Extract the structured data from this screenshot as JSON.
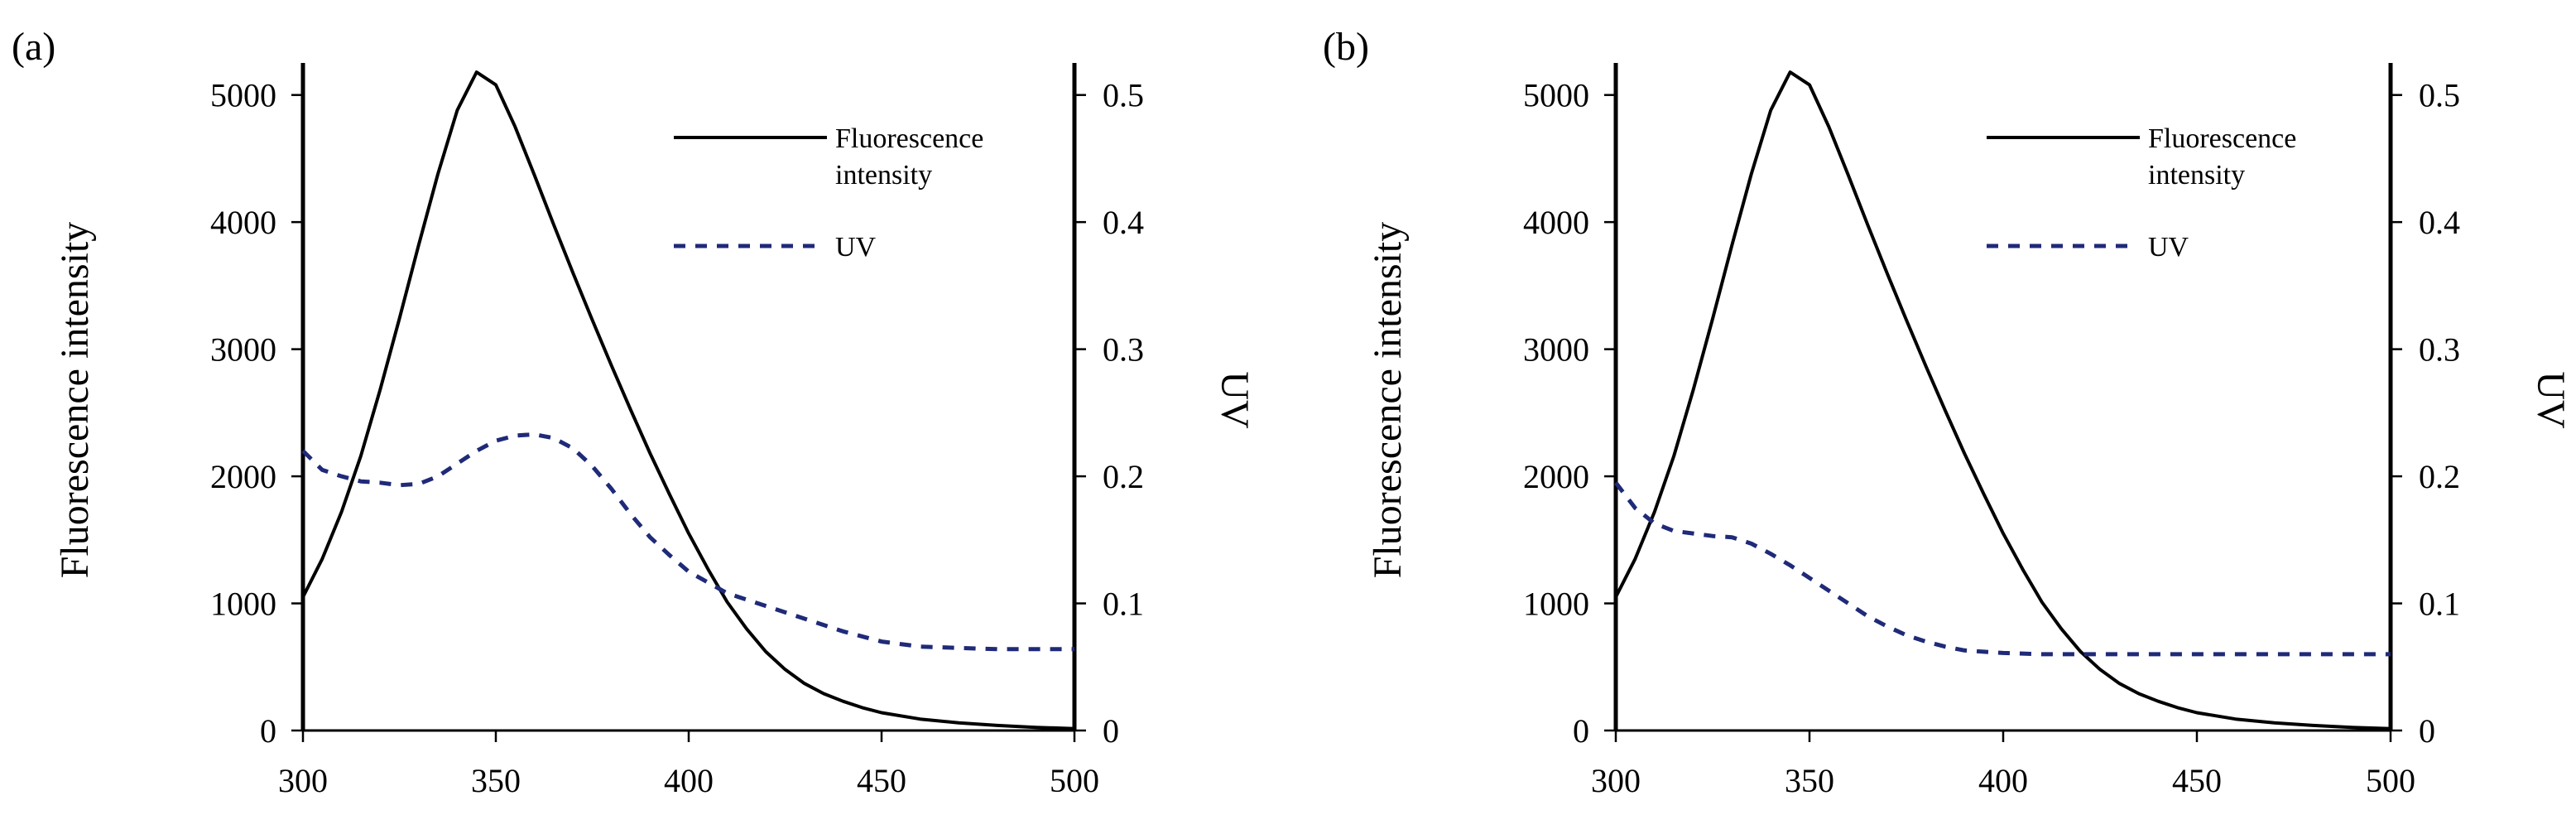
{
  "chart_data": [
    {
      "type": "line",
      "panel_label": "(a)",
      "x_domain": [
        300,
        500
      ],
      "xticks": [
        300,
        350,
        400,
        450,
        500
      ],
      "xtick_labels": [
        "300",
        "350",
        "400",
        "450",
        "500"
      ],
      "y_left": {
        "label": "Fluorescence intensity",
        "lim": [
          0,
          5200
        ],
        "ticks": [
          0,
          1000,
          2000,
          3000,
          4000,
          5000
        ],
        "tick_labels": [
          "0",
          "1000",
          "2000",
          "3000",
          "4000",
          "5000"
        ]
      },
      "y_right": {
        "label": "UV",
        "lim": [
          0,
          0.52
        ],
        "ticks": [
          0,
          0.1,
          0.2,
          0.3,
          0.4,
          0.5
        ],
        "tick_labels": [
          "0",
          "0.1",
          "0.2",
          "0.3",
          "0.4",
          "0.5"
        ]
      },
      "series": [
        {
          "name": "Fluorescence intensity",
          "axis": "left",
          "style": "solid",
          "color": "#000000",
          "x": [
            300,
            305,
            310,
            315,
            320,
            325,
            330,
            335,
            340,
            345,
            350,
            355,
            360,
            365,
            370,
            375,
            380,
            385,
            390,
            395,
            400,
            405,
            410,
            415,
            420,
            425,
            430,
            435,
            440,
            445,
            450,
            460,
            470,
            480,
            490,
            500
          ],
          "y": [
            1050,
            1350,
            1720,
            2160,
            2680,
            3240,
            3820,
            4380,
            4880,
            5180,
            5080,
            4750,
            4370,
            3980,
            3600,
            3230,
            2870,
            2520,
            2180,
            1860,
            1550,
            1270,
            1010,
            800,
            620,
            480,
            370,
            290,
            230,
            180,
            140,
            90,
            60,
            40,
            25,
            15
          ]
        },
        {
          "name": "UV",
          "axis": "right",
          "style": "dashed",
          "color": "#1f2a78",
          "x": [
            300,
            305,
            310,
            315,
            320,
            325,
            330,
            335,
            340,
            345,
            350,
            355,
            360,
            365,
            370,
            375,
            380,
            385,
            390,
            395,
            400,
            410,
            420,
            430,
            440,
            450,
            460,
            470,
            480,
            490,
            500
          ],
          "y": [
            0.22,
            0.205,
            0.2,
            0.196,
            0.195,
            0.193,
            0.194,
            0.2,
            0.21,
            0.22,
            0.228,
            0.232,
            0.233,
            0.23,
            0.222,
            0.208,
            0.19,
            0.17,
            0.152,
            0.138,
            0.125,
            0.108,
            0.098,
            0.088,
            0.078,
            0.07,
            0.066,
            0.065,
            0.064,
            0.064,
            0.064
          ]
        }
      ],
      "legend": [
        {
          "label_lines": [
            "Fluorescence",
            "intensity"
          ],
          "style": "solid",
          "color": "#000000"
        },
        {
          "label_lines": [
            "UV"
          ],
          "style": "dashed",
          "color": "#1f2a78"
        }
      ]
    },
    {
      "type": "line",
      "panel_label": "(b)",
      "x_domain": [
        300,
        500
      ],
      "xticks": [
        300,
        350,
        400,
        450,
        500
      ],
      "xtick_labels": [
        "300",
        "350",
        "400",
        "450",
        "500"
      ],
      "y_left": {
        "label": "Fluorescence intensity",
        "lim": [
          0,
          5200
        ],
        "ticks": [
          0,
          1000,
          2000,
          3000,
          4000,
          5000
        ],
        "tick_labels": [
          "0",
          "1000",
          "2000",
          "3000",
          "4000",
          "5000"
        ]
      },
      "y_right": {
        "label": "UV",
        "lim": [
          0,
          0.52
        ],
        "ticks": [
          0,
          0.1,
          0.2,
          0.3,
          0.4,
          0.5
        ],
        "tick_labels": [
          "0",
          "0.1",
          "0.2",
          "0.3",
          "0.4",
          "0.5"
        ]
      },
      "series": [
        {
          "name": "Fluorescence intensity",
          "axis": "left",
          "style": "solid",
          "color": "#000000",
          "x": [
            300,
            305,
            310,
            315,
            320,
            325,
            330,
            335,
            340,
            345,
            350,
            355,
            360,
            365,
            370,
            375,
            380,
            385,
            390,
            395,
            400,
            405,
            410,
            415,
            420,
            425,
            430,
            435,
            440,
            445,
            450,
            460,
            470,
            480,
            490,
            500
          ],
          "y": [
            1050,
            1350,
            1720,
            2160,
            2680,
            3240,
            3820,
            4380,
            4880,
            5180,
            5080,
            4750,
            4370,
            3980,
            3600,
            3230,
            2870,
            2520,
            2180,
            1860,
            1550,
            1270,
            1010,
            800,
            620,
            480,
            370,
            290,
            230,
            180,
            140,
            90,
            60,
            40,
            25,
            15
          ]
        },
        {
          "name": "UV",
          "axis": "right",
          "style": "dashed",
          "color": "#1f2a78",
          "x": [
            300,
            305,
            310,
            315,
            320,
            325,
            330,
            335,
            340,
            345,
            350,
            355,
            360,
            365,
            370,
            375,
            380,
            385,
            390,
            395,
            400,
            410,
            420,
            430,
            440,
            450,
            460,
            470,
            480,
            490,
            500
          ],
          "y": [
            0.195,
            0.175,
            0.163,
            0.157,
            0.155,
            0.153,
            0.152,
            0.147,
            0.139,
            0.13,
            0.12,
            0.11,
            0.1,
            0.09,
            0.082,
            0.075,
            0.07,
            0.066,
            0.063,
            0.062,
            0.061,
            0.06,
            0.06,
            0.06,
            0.06,
            0.06,
            0.06,
            0.06,
            0.06,
            0.06,
            0.06
          ]
        }
      ],
      "legend": [
        {
          "label_lines": [
            "Fluorescence",
            "intensity"
          ],
          "style": "solid",
          "color": "#000000"
        },
        {
          "label_lines": [
            "UV"
          ],
          "style": "dashed",
          "color": "#1f2a78"
        }
      ]
    }
  ]
}
